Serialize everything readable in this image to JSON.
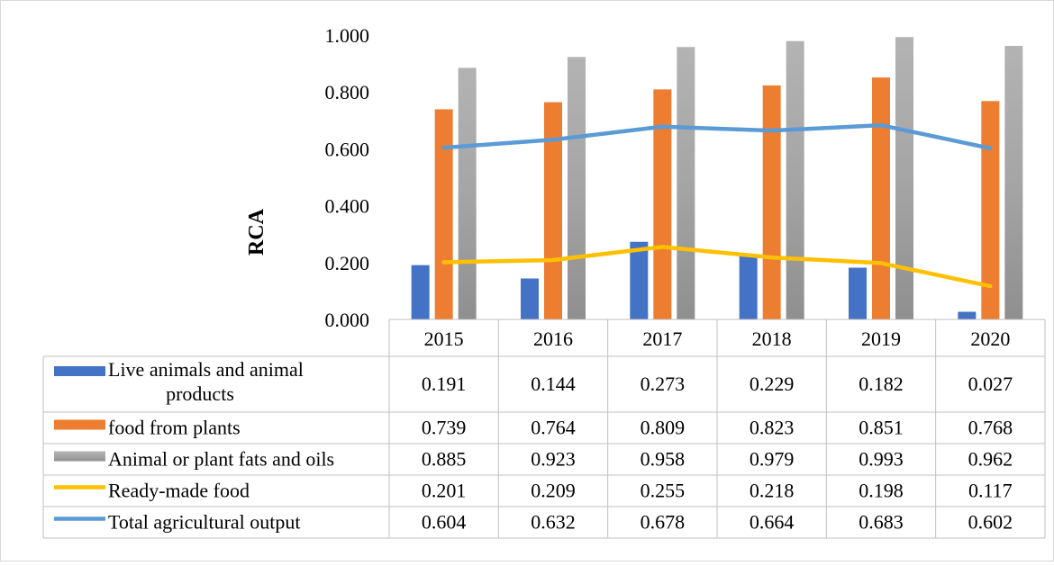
{
  "chart_data": {
    "type": "bar",
    "ylabel": "RCA",
    "xlabel": "",
    "title": "",
    "ylim": [
      0,
      1
    ],
    "ytick_step": 0.2,
    "ytick_labels": [
      "0.000",
      "0.200",
      "0.400",
      "0.600",
      "0.800",
      "1.000"
    ],
    "grid": false,
    "legend": "data-table-below",
    "categories": [
      "2015",
      "2016",
      "2017",
      "2018",
      "2019",
      "2020"
    ],
    "series": [
      {
        "name": "Live animals and animal products",
        "kind": "bar",
        "color": "#4472C4",
        "values": [
          0.191,
          0.144,
          0.273,
          0.229,
          0.182,
          0.027
        ],
        "labels": [
          "0.191",
          "0.144",
          "0.273",
          "0.229",
          "0.182",
          "0.027"
        ]
      },
      {
        "name": "food from plants",
        "kind": "bar",
        "color": "#ED7D31",
        "values": [
          0.739,
          0.764,
          0.809,
          0.823,
          0.851,
          0.768
        ],
        "labels": [
          "0.739",
          "0.764",
          "0.809",
          "0.823",
          "0.851",
          "0.768"
        ]
      },
      {
        "name": "Animal or plant fats and oils",
        "kind": "bar",
        "color": "#A5A5A5",
        "values": [
          0.885,
          0.923,
          0.958,
          0.979,
          0.993,
          0.962
        ],
        "labels": [
          "0.885",
          "0.923",
          "0.958",
          "0.979",
          "0.993",
          "0.962"
        ]
      },
      {
        "name": "Ready-made food",
        "kind": "line",
        "color": "#FFC000",
        "values": [
          0.201,
          0.209,
          0.255,
          0.218,
          0.198,
          0.117
        ],
        "labels": [
          "0.201",
          "0.209",
          "0.255",
          "0.218",
          "0.198",
          "0.117"
        ]
      },
      {
        "name": "Total agricultural output",
        "kind": "line",
        "color": "#5B9BD5",
        "values": [
          0.604,
          0.632,
          0.678,
          0.664,
          0.683,
          0.602
        ],
        "labels": [
          "0.604",
          "0.632",
          "0.678",
          "0.664",
          "0.683",
          "0.602"
        ]
      }
    ]
  }
}
